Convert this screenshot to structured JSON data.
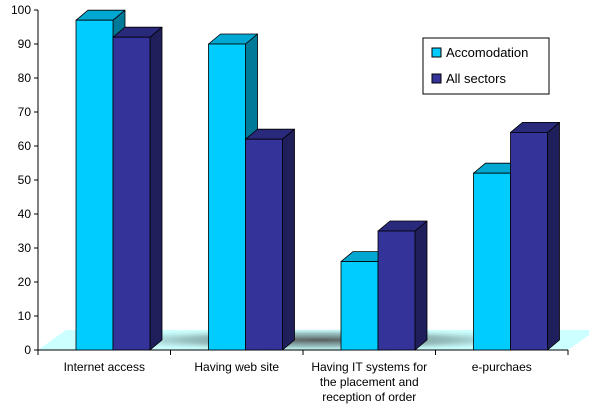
{
  "chart_data": {
    "type": "bar",
    "categories": [
      [
        "Internet access"
      ],
      [
        "Having web site"
      ],
      [
        "Having IT systems for",
        "the placement and",
        "reception of order"
      ],
      [
        "e-purchaes"
      ]
    ],
    "series": [
      {
        "name": "Accomodation",
        "values": [
          97,
          90,
          26,
          52
        ],
        "color": "#00CCFF"
      },
      {
        "name": "All sectors",
        "values": [
          92,
          62,
          35,
          64
        ],
        "color": "#333399"
      }
    ],
    "yticks": [
      "0",
      "10",
      "20",
      "30",
      "40",
      "50",
      "60",
      "70",
      "80",
      "90",
      "100"
    ],
    "ylim": [
      0,
      100
    ],
    "grid": false,
    "legend_position": "top-right",
    "style": "3d-clustered-column",
    "floor_color": "#CCFFFF"
  }
}
